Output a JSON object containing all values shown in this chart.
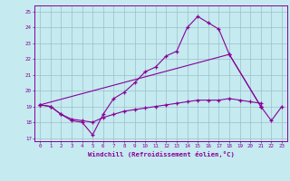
{
  "xlabel": "Windchill (Refroidissement éolien,°C)",
  "bg_color": "#c5eaf0",
  "grid_color": "#9dbfc8",
  "line_color": "#880099",
  "xlim_min": -0.5,
  "xlim_max": 23.5,
  "ylim_min": 16.8,
  "ylim_max": 25.4,
  "xticks": [
    0,
    1,
    2,
    3,
    4,
    5,
    6,
    7,
    8,
    9,
    10,
    11,
    12,
    13,
    14,
    15,
    16,
    17,
    18,
    19,
    20,
    21,
    22,
    23
  ],
  "yticks": [
    17,
    18,
    19,
    20,
    21,
    22,
    23,
    24,
    25
  ],
  "line1_x": [
    0,
    1,
    2,
    3,
    4,
    5,
    6,
    7,
    8,
    9,
    10,
    11,
    12,
    13,
    14,
    15,
    16,
    17,
    18,
    21
  ],
  "line1_y": [
    19.1,
    19.0,
    18.5,
    18.1,
    18.0,
    17.2,
    18.5,
    19.5,
    19.9,
    20.5,
    21.2,
    21.5,
    22.2,
    22.5,
    24.0,
    24.7,
    24.3,
    23.9,
    22.3,
    19.0
  ],
  "line2_x": [
    0,
    1,
    2,
    3,
    4,
    5,
    6,
    7,
    8,
    9,
    10,
    11,
    12,
    13,
    14,
    15,
    16,
    17,
    18,
    19,
    20,
    21
  ],
  "line2_y": [
    19.1,
    19.0,
    18.5,
    18.2,
    18.1,
    18.0,
    18.3,
    18.5,
    18.7,
    18.8,
    18.9,
    19.0,
    19.1,
    19.2,
    19.3,
    19.4,
    19.4,
    19.4,
    19.5,
    19.4,
    19.3,
    19.2
  ],
  "line3_x": [
    0,
    18,
    21
  ],
  "line3_y": [
    19.1,
    22.3,
    19.0
  ],
  "line4_x": [
    21,
    22,
    23
  ],
  "line4_y": [
    19.0,
    18.1,
    19.0
  ]
}
